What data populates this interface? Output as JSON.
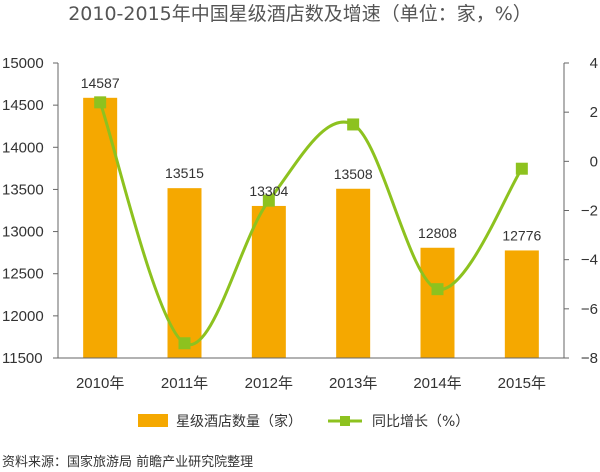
{
  "chart_data": {
    "type": "bar",
    "title": "2010-2015年中国星级酒店数及增速（单位：家，%）",
    "categories": [
      "2010年",
      "2011年",
      "2012年",
      "2013年",
      "2014年",
      "2015年"
    ],
    "series": [
      {
        "name": "星级酒店数量（家）",
        "type": "bar",
        "axis": "left",
        "values": [
          14587,
          13515,
          13304,
          13508,
          12808,
          12776
        ]
      },
      {
        "name": "同比增长（%）",
        "type": "line",
        "axis": "right",
        "values": [
          2.4,
          -7.4,
          -1.6,
          1.5,
          -5.2,
          -0.3
        ]
      }
    ],
    "data_labels": [
      "14587",
      "13515",
      "13304",
      "13508",
      "12808",
      "12776"
    ],
    "ylim_left": [
      11500,
      15000
    ],
    "yticks_left": [
      "15000",
      "14500",
      "14000",
      "13500",
      "13000",
      "12500",
      "12000",
      "11500"
    ],
    "ylim_right": [
      -8,
      4
    ],
    "yticks_right": [
      "4",
      "2",
      "0",
      "-2",
      "-4",
      "-6",
      "-8"
    ],
    "grid": false,
    "legend_position": "bottom"
  },
  "source": "资料来源：国家旅游局 前瞻产业研究院整理",
  "colors": {
    "bar": "#F5A800",
    "line": "#8DC21F",
    "axis": "#666666",
    "text": "#333333"
  }
}
